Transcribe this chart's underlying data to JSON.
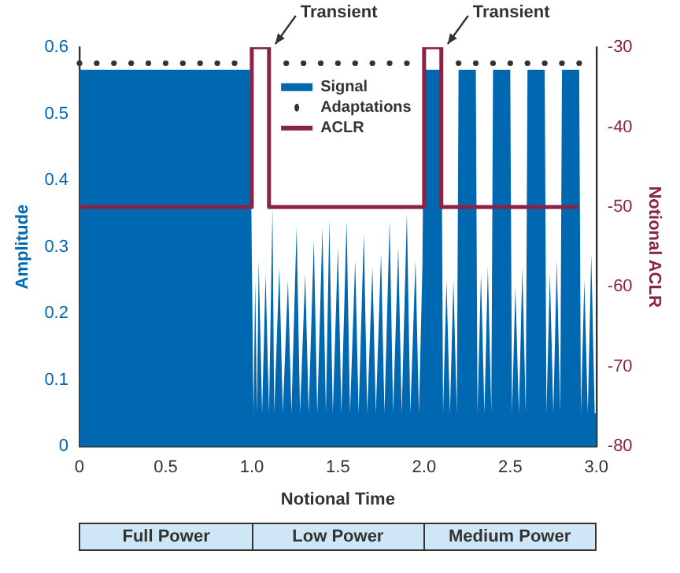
{
  "chart_data": {
    "type": "area",
    "xlabel": "Notional Time",
    "ylabel": "Amplitude",
    "y2label": "Notional ACLR",
    "xlim": [
      0,
      3
    ],
    "xticks": [
      0,
      0.5,
      {
        "value": 1,
        "label": "1.0"
      },
      1.5,
      {
        "value": 2,
        "label": "2.0"
      },
      2.5,
      {
        "value": 3,
        "label": "3.0"
      }
    ],
    "ylim": [
      0,
      0.6
    ],
    "yticks": [
      0,
      0.1,
      0.2,
      0.3,
      0.4,
      0.5,
      0.6
    ],
    "y2lim": [
      -80,
      -30
    ],
    "y2ticks": [
      -80,
      -70,
      -60,
      -50,
      -40,
      -30
    ],
    "grid": false,
    "legend": "top",
    "series": [
      {
        "name": "Signal",
        "color": "#0067b1",
        "x": [
          0,
          0.99,
          1.0,
          1.01,
          1.02,
          1.03,
          1.04,
          1.06,
          1.08,
          1.1,
          1.12,
          1.13,
          1.16,
          1.18,
          1.21,
          1.23,
          1.26,
          1.28,
          1.31,
          1.33,
          1.36,
          1.38,
          1.41,
          1.43,
          1.45,
          1.47,
          1.5,
          1.52,
          1.55,
          1.57,
          1.6,
          1.62,
          1.65,
          1.67,
          1.7,
          1.72,
          1.75,
          1.77,
          1.8,
          1.82,
          1.85,
          1.87,
          1.9,
          1.92,
          1.95,
          1.97,
          1.99,
          2.0,
          2.1,
          2.11,
          2.13,
          2.15,
          2.17,
          2.19,
          2.2,
          2.3,
          2.31,
          2.33,
          2.35,
          2.37,
          2.39,
          2.4,
          2.5,
          2.51,
          2.53,
          2.55,
          2.57,
          2.59,
          2.6,
          2.7,
          2.71,
          2.73,
          2.75,
          2.77,
          2.79,
          2.8,
          2.9,
          2.91,
          2.93,
          2.95,
          2.97,
          2.99,
          3.0
        ],
        "values": [
          0.566,
          0.566,
          0.29,
          0.05,
          0.25,
          0.05,
          0.28,
          0.05,
          0.26,
          0.05,
          0.36,
          0.05,
          0.27,
          0.05,
          0.25,
          0.05,
          0.33,
          0.05,
          0.26,
          0.05,
          0.31,
          0.05,
          0.33,
          0.05,
          0.34,
          0.05,
          0.3,
          0.05,
          0.34,
          0.05,
          0.28,
          0.05,
          0.32,
          0.05,
          0.27,
          0.05,
          0.29,
          0.05,
          0.34,
          0.05,
          0.3,
          0.05,
          0.35,
          0.05,
          0.28,
          0.05,
          0.27,
          0.566,
          0.566,
          0.05,
          0.25,
          0.05,
          0.25,
          0.05,
          0.566,
          0.566,
          0.05,
          0.26,
          0.05,
          0.27,
          0.05,
          0.566,
          0.566,
          0.05,
          0.24,
          0.05,
          0.27,
          0.05,
          0.566,
          0.566,
          0.05,
          0.26,
          0.05,
          0.28,
          0.05,
          0.566,
          0.566,
          0.05,
          0.25,
          0.05,
          0.29,
          0.05,
          0.05
        ]
      },
      {
        "name": "Adaptations",
        "type": "scatter",
        "marker": "circle",
        "color": "#333333",
        "x": [
          0,
          0.1,
          0.2,
          0.3,
          0.4,
          0.5,
          0.6,
          0.7,
          0.8,
          0.9,
          1.2,
          1.3,
          1.4,
          1.5,
          1.6,
          1.7,
          1.8,
          1.9,
          2.2,
          2.3,
          2.4,
          2.5,
          2.6,
          2.7,
          2.8,
          2.9
        ],
        "values": [
          0.576,
          0.576,
          0.576,
          0.576,
          0.576,
          0.576,
          0.576,
          0.576,
          0.576,
          0.576,
          0.576,
          0.576,
          0.576,
          0.576,
          0.576,
          0.576,
          0.576,
          0.576,
          0.576,
          0.576,
          0.576,
          0.576,
          0.576,
          0.576,
          0.576,
          0.576
        ]
      },
      {
        "name": "ACLR",
        "type": "line",
        "axis": "y2",
        "color": "#8b2347",
        "x": [
          0,
          1,
          1,
          1.1,
          1.1,
          2,
          2,
          2.1,
          2.1,
          2.9
        ],
        "values": [
          -50,
          -50,
          -30,
          -30,
          -50,
          -50,
          -30,
          -30,
          -50,
          -50
        ]
      }
    ],
    "annotations": [
      {
        "text": "Transient",
        "x": 1.1,
        "y": 0.6
      },
      {
        "text": "Transient",
        "x": 2.1,
        "y": 0.6
      },
      "Full Power",
      "Low Power",
      "Medium Power"
    ]
  }
}
